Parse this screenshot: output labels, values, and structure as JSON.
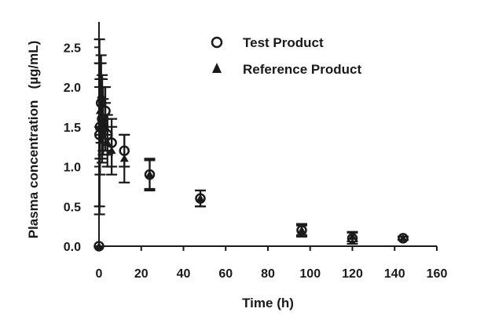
{
  "chart_data": {
    "type": "scatter",
    "xlabel": "Time (h)",
    "ylabel": "Plasma concentration   (µg/mL)",
    "xlim": [
      0,
      160
    ],
    "ylim": [
      0,
      2.7
    ],
    "x_ticks": [
      "0",
      "20",
      "40",
      "60",
      "80",
      "100",
      "120",
      "140",
      "160"
    ],
    "y_ticks": [
      "0.0",
      "0.5",
      "1.0",
      "1.5",
      "2.0",
      "2.5"
    ],
    "grid": false,
    "legend_position": "top-right",
    "series": [
      {
        "name": "Test Product",
        "marker": "open-circle",
        "color": "#1a1a1a",
        "points": [
          {
            "x": 0,
            "y": 0.0,
            "err": 0.0
          },
          {
            "x": 0.25,
            "y": 1.4,
            "err": 0.9
          },
          {
            "x": 0.5,
            "y": 1.5,
            "err": 0.6
          },
          {
            "x": 1,
            "y": 1.8,
            "err": 0.5
          },
          {
            "x": 1.5,
            "y": 1.6,
            "err": 0.55
          },
          {
            "x": 2,
            "y": 1.5,
            "err": 0.35
          },
          {
            "x": 3,
            "y": 1.7,
            "err": 0.3
          },
          {
            "x": 4,
            "y": 1.4,
            "err": 0.25
          },
          {
            "x": 6,
            "y": 1.3,
            "err": 0.3
          },
          {
            "x": 12,
            "y": 1.2,
            "err": 0.2
          },
          {
            "x": 24,
            "y": 0.9,
            "err": 0.18
          },
          {
            "x": 48,
            "y": 0.6,
            "err": 0.1
          },
          {
            "x": 96,
            "y": 0.2,
            "err": 0.08
          },
          {
            "x": 120,
            "y": 0.1,
            "err": 0.07
          },
          {
            "x": 144,
            "y": 0.1,
            "err": 0.02
          }
        ]
      },
      {
        "name": "Reference Product",
        "marker": "filled-triangle",
        "color": "#1a1a1a",
        "points": [
          {
            "x": 0,
            "y": 0.0,
            "err": 0.0
          },
          {
            "x": 0.25,
            "y": 1.5,
            "err": 1.1
          },
          {
            "x": 0.5,
            "y": 1.7,
            "err": 0.6
          },
          {
            "x": 1,
            "y": 1.9,
            "err": 0.5
          },
          {
            "x": 1.5,
            "y": 1.6,
            "err": 0.5
          },
          {
            "x": 2,
            "y": 1.6,
            "err": 0.4
          },
          {
            "x": 3,
            "y": 1.5,
            "err": 0.3
          },
          {
            "x": 4,
            "y": 1.3,
            "err": 0.3
          },
          {
            "x": 6,
            "y": 1.2,
            "err": 0.3
          },
          {
            "x": 12,
            "y": 1.1,
            "err": 0.3
          },
          {
            "x": 24,
            "y": 0.9,
            "err": 0.2
          },
          {
            "x": 48,
            "y": 0.6,
            "err": 0.1
          },
          {
            "x": 96,
            "y": 0.2,
            "err": 0.06
          },
          {
            "x": 120,
            "y": 0.12,
            "err": 0.06
          },
          {
            "x": 144,
            "y": 0.1,
            "err": 0.02
          }
        ]
      }
    ]
  }
}
